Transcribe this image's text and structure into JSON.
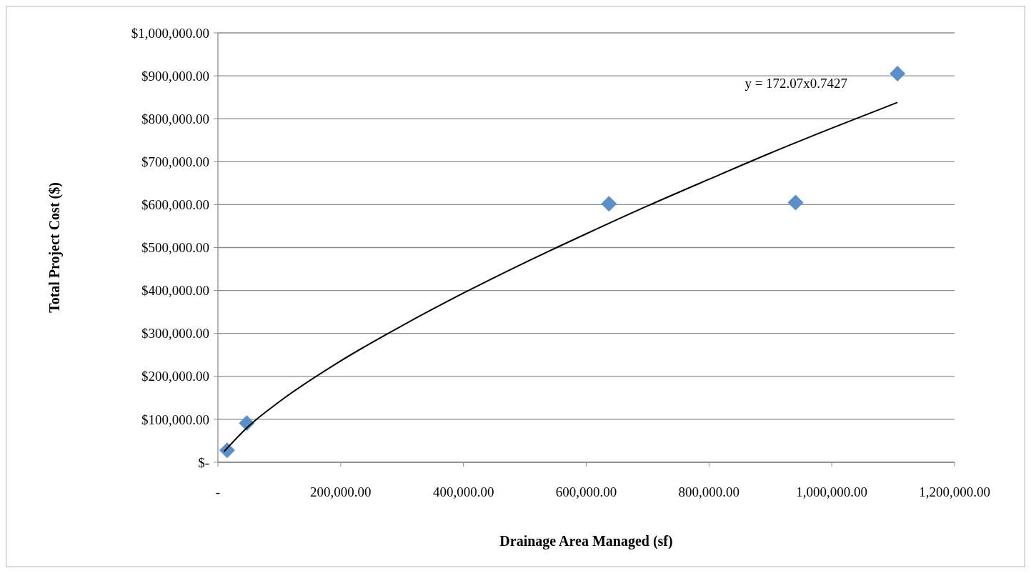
{
  "chart_data": {
    "type": "scatter",
    "xlabel": "Drainage Area Managed (sf)",
    "ylabel": "Total Project Cost ($)",
    "xlim": [
      0,
      1200000
    ],
    "xticks": [
      {
        "value": 0,
        "label": "-"
      },
      {
        "value": 200000,
        "label": "200,000.00"
      },
      {
        "value": 400000,
        "label": "400,000.00"
      },
      {
        "value": 600000,
        "label": "600,000.00"
      },
      {
        "value": 800000,
        "label": "800,000.00"
      },
      {
        "value": 1000000,
        "label": "1,000,000.00"
      },
      {
        "value": 1200000,
        "label": "1,200,000.00"
      }
    ],
    "ylim": [
      0,
      1000000
    ],
    "yticks": [
      {
        "value": 0,
        "label": "$-"
      },
      {
        "value": 100000,
        "label": "$100,000.00"
      },
      {
        "value": 200000,
        "label": "$200,000.00"
      },
      {
        "value": 300000,
        "label": "$300,000.00"
      },
      {
        "value": 400000,
        "label": "$400,000.00"
      },
      {
        "value": 500000,
        "label": "$500,000.00"
      },
      {
        "value": 600000,
        "label": "$600,000.00"
      },
      {
        "value": 700000,
        "label": "$700,000.00"
      },
      {
        "value": 800000,
        "label": "$800,000.00"
      },
      {
        "value": 900000,
        "label": "$900,000.00"
      },
      {
        "value": 1000000,
        "label": "$1,000,000.00"
      }
    ],
    "grid": "y",
    "legend": false,
    "annotations": [
      "y = 172.07x0.7427"
    ],
    "series": [
      {
        "color": "#5b8fc9",
        "marker": "diamond",
        "x": [
          15000,
          47000,
          637000,
          941000,
          1107000
        ],
        "values": [
          28000,
          91000,
          602000,
          605000,
          905000
        ]
      },
      {
        "type": "line",
        "color": "#000000",
        "marker": "none",
        "line_style": "solid",
        "x": [
          10000,
          50000,
          100000,
          200000,
          300000,
          400000,
          500000,
          600000,
          700000,
          800000,
          900000,
          1000000,
          1107000
        ],
        "values": [
          25000,
          84000,
          141000,
          236000,
          318000,
          394000,
          465000,
          532000,
          597000,
          659000,
          720000,
          778000,
          838000
        ]
      }
    ]
  }
}
